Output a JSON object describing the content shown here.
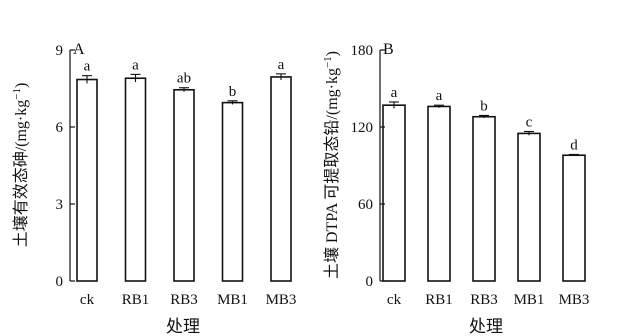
{
  "chart_data": [
    {
      "type": "bar",
      "panel_label": "A",
      "categories": [
        "ck",
        "RB1",
        "RB3",
        "MB1",
        "MB3"
      ],
      "values": [
        7.85,
        7.9,
        7.45,
        6.95,
        7.95
      ],
      "errors": [
        0.15,
        0.15,
        0.08,
        0.07,
        0.12
      ],
      "significance": [
        "a",
        "a",
        "ab",
        "b",
        "a"
      ],
      "ylim": [
        0,
        9
      ],
      "yticks": [
        0,
        3,
        6,
        9
      ],
      "xlabel": "处理",
      "ylabel_main": "土壤有效态砷/(mg·kg",
      "ylabel_sup": "−1",
      "ylabel_end": ")"
    },
    {
      "type": "bar",
      "panel_label": "B",
      "categories": [
        "ck",
        "RB1",
        "RB3",
        "MB1",
        "MB3"
      ],
      "values": [
        137,
        136,
        128,
        115,
        98
      ],
      "errors": [
        2.5,
        1.0,
        1.0,
        1.5,
        0.6
      ],
      "significance": [
        "a",
        "a",
        "b",
        "c",
        "d"
      ],
      "ylim": [
        0,
        180
      ],
      "yticks": [
        0,
        60,
        120,
        180
      ],
      "xlabel": "处理",
      "ylabel_main": "土壤 DTPA 可提取态铅/(mg·kg",
      "ylabel_sup": "−1",
      "ylabel_end": ")"
    }
  ]
}
